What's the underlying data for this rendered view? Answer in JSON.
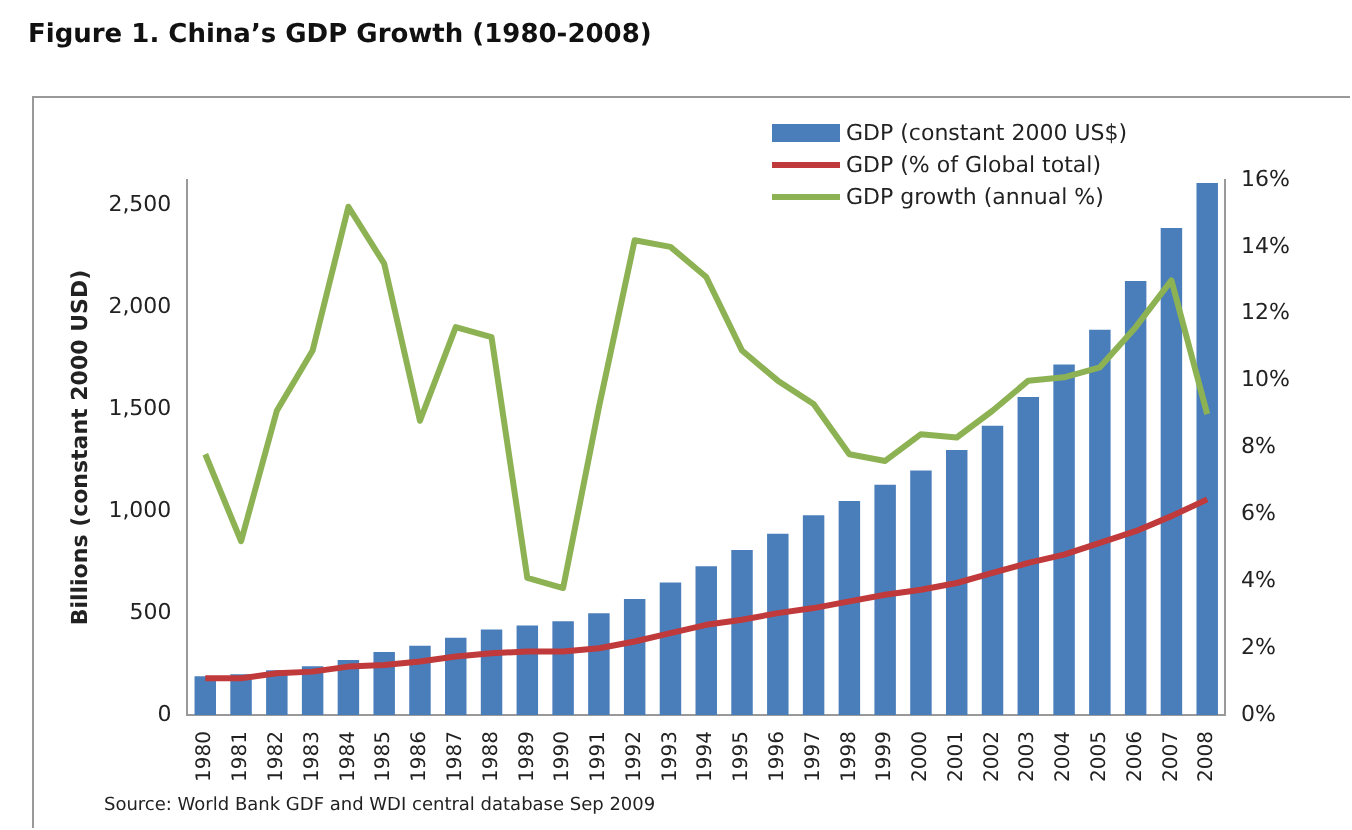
{
  "chart_data": {
    "type": "bar",
    "title": "Figure 1. China’s GDP Growth (1980-2008)",
    "ylabel": "Billions (constant 2000 USD)",
    "categories": [
      "1980",
      "1981",
      "1982",
      "1983",
      "1984",
      "1985",
      "1986",
      "1987",
      "1988",
      "1989",
      "1990",
      "1991",
      "1992",
      "1993",
      "1994",
      "1995",
      "1996",
      "1997",
      "1998",
      "1999",
      "2000",
      "2001",
      "2002",
      "2003",
      "2004",
      "2005",
      "2006",
      "2007",
      "2008"
    ],
    "series": [
      {
        "name": "GDP (constant 2000 US$)",
        "color": "#4a7ebb",
        "values": [
          190,
          200,
          220,
          240,
          270,
          310,
          340,
          380,
          420,
          440,
          460,
          500,
          570,
          650,
          730,
          810,
          890,
          980,
          1050,
          1130,
          1200,
          1300,
          1420,
          1560,
          1720,
          1890,
          2130,
          2390,
          2610
        ]
      },
      {
        "name": "GDP (% of Global total)",
        "type": "line",
        "axis": "y2",
        "color": "#c0393b",
        "values": [
          1.1,
          1.1,
          1.25,
          1.3,
          1.45,
          1.5,
          1.6,
          1.75,
          1.85,
          1.9,
          1.9,
          2.0,
          2.2,
          2.45,
          2.7,
          2.85,
          3.05,
          3.2,
          3.4,
          3.6,
          3.75,
          3.95,
          4.25,
          4.55,
          4.8,
          5.15,
          5.5,
          5.95,
          6.45
        ]
      },
      {
        "name": "GDP growth (annual %)",
        "type": "line",
        "axis": "y2",
        "color": "#8db253",
        "values": [
          7.8,
          5.2,
          9.1,
          10.9,
          15.2,
          13.5,
          8.8,
          11.6,
          11.3,
          4.1,
          3.8,
          9.2,
          14.2,
          14.0,
          13.1,
          10.9,
          10.0,
          9.3,
          7.8,
          7.6,
          8.4,
          8.3,
          9.1,
          10.0,
          10.1,
          10.4,
          11.6,
          13.0,
          9.0
        ]
      }
    ],
    "ylim": [
      0,
      2625
    ],
    "yticks": [
      0,
      {
        "value": 500,
        "label": "500"
      },
      {
        "value": 1000,
        "label": "1,000"
      },
      {
        "value": 1500,
        "label": "1,500"
      },
      {
        "value": 2000,
        "label": "2,000"
      },
      {
        "value": 2500,
        "label": "2,500"
      }
    ],
    "y2lim": [
      0,
      16
    ],
    "y2ticks": [
      {
        "value": 0,
        "label": "0%"
      },
      {
        "value": 2,
        "label": "2%"
      },
      {
        "value": 4,
        "label": "4%"
      },
      {
        "value": 6,
        "label": "6%"
      },
      {
        "value": 8,
        "label": "8%"
      },
      {
        "value": 10,
        "label": "10%"
      },
      {
        "value": 12,
        "label": "12%"
      },
      {
        "value": 14,
        "label": "14%"
      },
      {
        "value": 16,
        "label": "16%"
      }
    ],
    "grid": false,
    "legend": "top right",
    "marker": "none",
    "annotations": [
      "Source: World Bank GDF and WDI central database Sep 2009"
    ]
  }
}
